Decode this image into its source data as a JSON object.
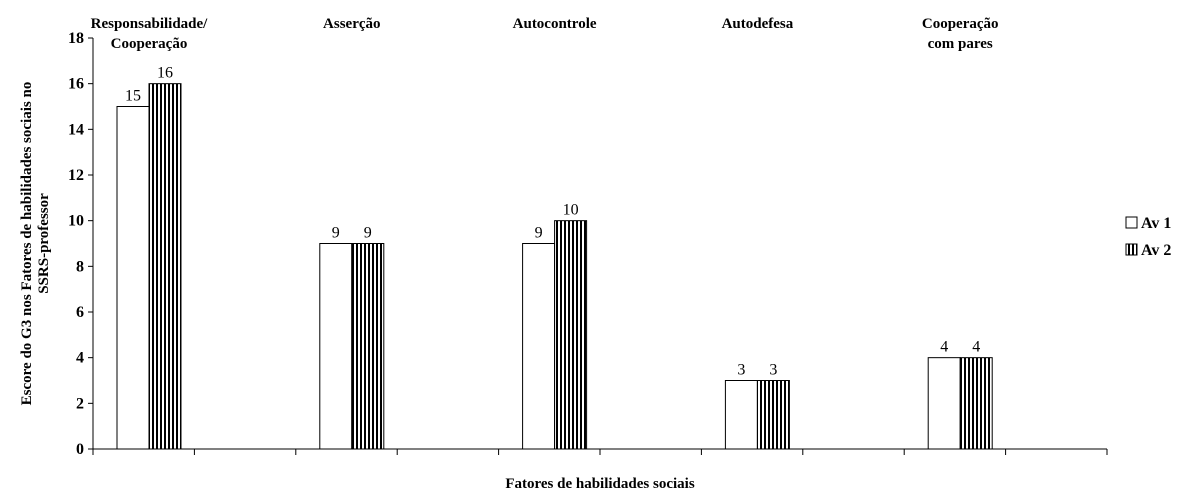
{
  "chart_data": {
    "type": "bar",
    "categories": [
      [
        "Responsabilidade/",
        "Cooperação"
      ],
      [
        "Asserção"
      ],
      [
        "Autocontrole"
      ],
      [
        "Autodefesa"
      ],
      [
        "Cooperação",
        "com pares"
      ]
    ],
    "series": [
      {
        "name": "Av 1",
        "values": [
          15,
          9,
          9,
          3,
          4
        ],
        "pattern": "plain"
      },
      {
        "name": "Av 2",
        "values": [
          16,
          9,
          10,
          3,
          4
        ],
        "pattern": "vertical-stripes"
      }
    ],
    "xlabel": "Fatores de habilidades sociais",
    "ylabel": [
      "Escore do G3 nos Fatores de habilidades sociais no",
      "SSRS-professor"
    ],
    "ylim": [
      0,
      18
    ],
    "yticks": [
      0,
      2,
      4,
      6,
      8,
      10,
      12,
      14,
      16,
      18
    ],
    "grid": false,
    "legend_position": "right"
  }
}
